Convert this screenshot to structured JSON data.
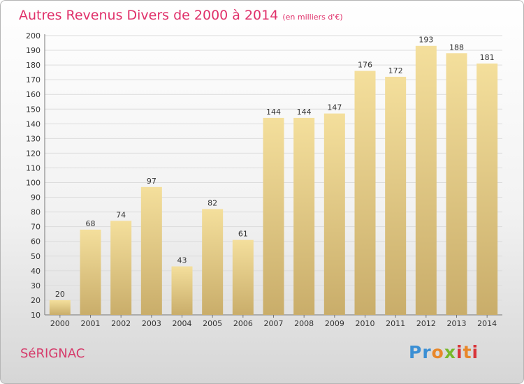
{
  "header": {
    "title": "Autres Revenus Divers de 2000 à 2014",
    "unit": "(en milliers d'€)"
  },
  "footer": {
    "location": "SéRIGNAC",
    "brand": "Proxiti"
  },
  "colors": {
    "title": "#e0306a",
    "bar_light": "#f4df9c",
    "bar_dark": "#c9ad6a",
    "grid": "#dcdcdc"
  },
  "chart_data": {
    "type": "bar",
    "title": "Autres Revenus Divers de 2000 à 2014",
    "subtitle": "(en milliers d'€)",
    "categories": [
      "2000",
      "2001",
      "2002",
      "2003",
      "2004",
      "2005",
      "2006",
      "2007",
      "2008",
      "2009",
      "2010",
      "2011",
      "2012",
      "2013",
      "2014"
    ],
    "values": [
      20,
      68,
      74,
      97,
      43,
      82,
      61,
      144,
      144,
      147,
      176,
      172,
      193,
      188,
      181
    ],
    "ylim": [
      10,
      200
    ],
    "yticks": [
      10,
      20,
      30,
      40,
      50,
      60,
      70,
      80,
      90,
      100,
      110,
      120,
      130,
      140,
      150,
      160,
      170,
      180,
      190,
      200
    ],
    "grid": true,
    "data_labels": true
  }
}
